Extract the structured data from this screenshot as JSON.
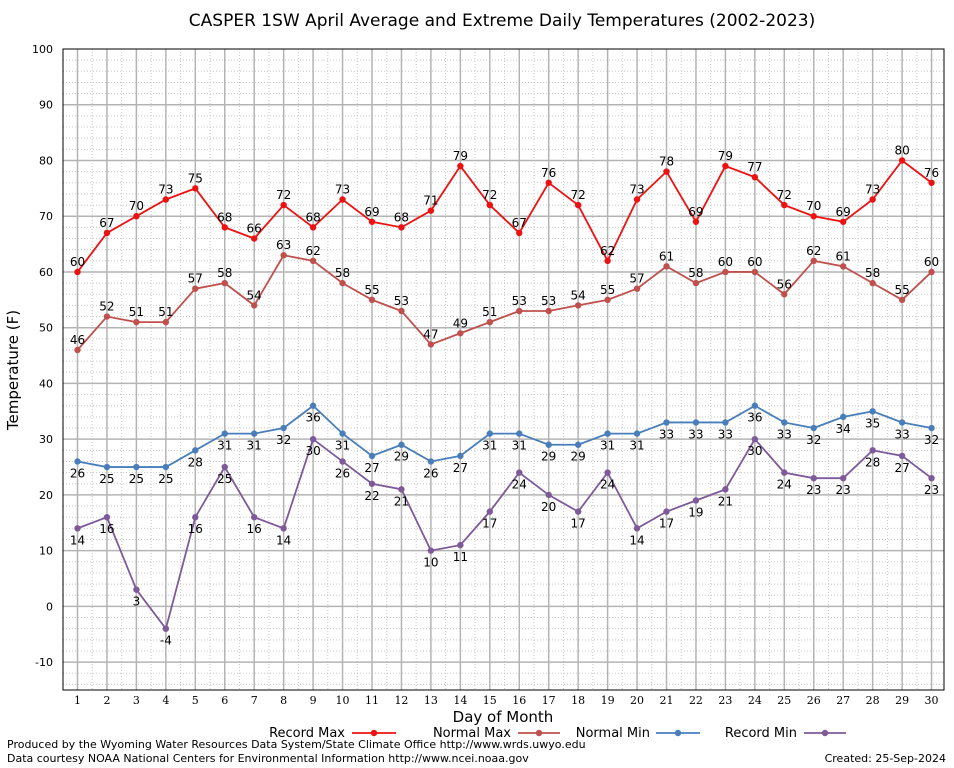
{
  "chart_data": {
    "type": "line",
    "title": "CASPER 1SW April Average and Extreme Daily Temperatures (2002-2023)",
    "xlabel": "Day of Month",
    "ylabel": "Temperature (F)",
    "ylim": [
      -15,
      100
    ],
    "yticks": [
      -10,
      0,
      10,
      20,
      30,
      40,
      50,
      60,
      70,
      80,
      90,
      100
    ],
    "x": [
      1,
      2,
      3,
      4,
      5,
      6,
      7,
      8,
      9,
      10,
      11,
      12,
      13,
      14,
      15,
      16,
      17,
      18,
      19,
      20,
      21,
      22,
      23,
      24,
      25,
      26,
      27,
      28,
      29,
      30
    ],
    "grid": true,
    "legend": "bottom",
    "series": [
      {
        "name": "Record Max",
        "color": "#ee1111",
        "label_pos": "above",
        "values": [
          60,
          67,
          70,
          73,
          75,
          68,
          66,
          72,
          68,
          73,
          69,
          68,
          71,
          79,
          72,
          67,
          76,
          72,
          62,
          73,
          78,
          69,
          79,
          77,
          72,
          70,
          69,
          73,
          80,
          76
        ]
      },
      {
        "name": "Normal Max",
        "color": "#c0504d",
        "label_pos": "above",
        "values": [
          46,
          52,
          51,
          51,
          57,
          58,
          54,
          63,
          62,
          58,
          55,
          53,
          47,
          49,
          51,
          53,
          53,
          54,
          55,
          57,
          61,
          58,
          60,
          60,
          56,
          62,
          61,
          58,
          55,
          60
        ]
      },
      {
        "name": "Normal Min",
        "color": "#4a7ebb",
        "label_pos": "below",
        "values": [
          26,
          25,
          25,
          25,
          28,
          31,
          31,
          32,
          36,
          31,
          27,
          29,
          26,
          27,
          31,
          31,
          29,
          29,
          31,
          31,
          33,
          33,
          33,
          36,
          33,
          32,
          34,
          35,
          33,
          32
        ]
      },
      {
        "name": "Record Min",
        "color": "#7f5a9a",
        "label_pos": "below",
        "values": [
          14,
          16,
          3,
          -4,
          16,
          25,
          16,
          14,
          30,
          26,
          22,
          21,
          10,
          11,
          17,
          24,
          20,
          17,
          24,
          14,
          17,
          19,
          21,
          30,
          24,
          23,
          23,
          28,
          27,
          23
        ]
      }
    ]
  },
  "footer": {
    "line1": "Produced by the Wyoming Water Resources Data System/State Climate Office http://www.wrds.uwyo.edu",
    "line2": "Data courtesy NOAA National Centers for Environmental Information http://www.ncei.noaa.gov",
    "created": "Created:  25-Sep-2024"
  }
}
